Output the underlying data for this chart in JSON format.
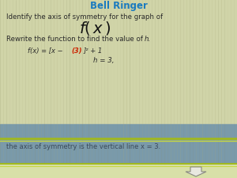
{
  "title": "Bell Ringer",
  "title_color": "#1a7abf",
  "line1": "Identify the axis of symmetry for the graph of",
  "line3_main": "Rewrite the function to find the value of ",
  "line3_italic": "h.",
  "line4a": "f(x) = [x − ",
  "line4b": "(3)",
  "line4c": "]² + 1",
  "line5": "h = 3,",
  "line6": "the axis of symmetry is the vertical line x = 3.",
  "bg_color_top": "#d0d4a8",
  "bg_color_mid": "#7a9aaa",
  "bg_color_footer": "#d8e0a8",
  "text_color": "#2a2a2a",
  "text_color_mid": "#3a4a5a",
  "red_color": "#cc2200",
  "title_color_val": "#1a7abf",
  "stripe_dark": "#a8a880",
  "stripe_light": "#c0c498",
  "sep_line_color": "#a0b820",
  "sep_line2_color": "#c8d840",
  "arrow_color": "#e8e8e0",
  "figsize": [
    3.0,
    2.25
  ],
  "dpi": 100
}
